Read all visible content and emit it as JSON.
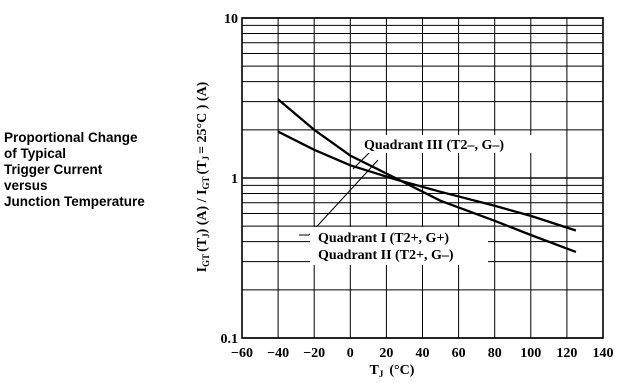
{
  "side_title_lines": [
    "Proportional Change",
    "of Typical",
    "Trigger Current",
    "versus",
    "Junction Temperature"
  ],
  "chart_data": {
    "type": "line",
    "title": "Proportional Change of Typical Trigger Current versus Junction Temperature",
    "xlabel": "T",
    "xlabel_sub": "J",
    "xlabel_unit": "(°C)",
    "ylabel": "I",
    "ylabel_sub1": "GT",
    "ylabel_mid1": "(T",
    "ylabel_sub2": "J",
    "ylabel_mid2": ") (A) / I",
    "ylabel_sub3": "GT",
    "ylabel_mid3": "(T",
    "ylabel_sub4": "J",
    "ylabel_end": "= 25°C ) (A)",
    "xlim": [
      -60,
      140
    ],
    "ylim": [
      0.1,
      10
    ],
    "yscale": "log",
    "grid": true,
    "x_ticks": [
      "−60",
      "−40",
      "−20",
      "0",
      "20",
      "40",
      "60",
      "80",
      "100",
      "120",
      "140"
    ],
    "y_ticks": [
      "0.1",
      "1",
      "10"
    ],
    "series": [
      {
        "name": "Quadrant III (T2−, G−)",
        "x": [
          -40,
          -20,
          0,
          25,
          50,
          80,
          100,
          125
        ],
        "y": [
          3.1,
          2.0,
          1.38,
          1.0,
          0.72,
          0.54,
          0.44,
          0.345
        ]
      },
      {
        "name": "Quadrant I (T2+, G+) / Quadrant II (T2+, G−)",
        "x": [
          -40,
          -20,
          0,
          25,
          50,
          80,
          100,
          125
        ],
        "y": [
          1.95,
          1.5,
          1.2,
          0.98,
          0.82,
          0.67,
          0.58,
          0.47
        ]
      }
    ],
    "annotations": {
      "q3": "Quadrant III (T2–, G–)",
      "q1": "Quadrant I (T2+, G+)",
      "q2": "Quadrant II (T2+, G–)"
    }
  }
}
